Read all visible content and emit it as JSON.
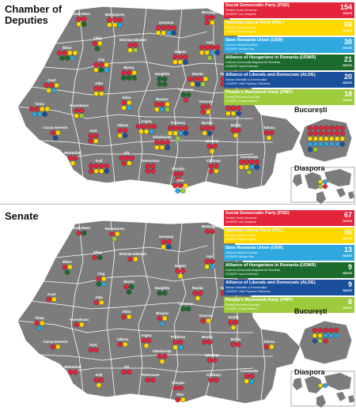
{
  "colors": {
    "PSD": "#e3243a",
    "PNL": "#ffd900",
    "USR": "#2ea8df",
    "UDMR": "#1c6b2c",
    "ALDE": "#1a4f9c",
    "PMP": "#9ecb3b",
    "map_fill": "#7c7c7c",
    "border": "#ffffff"
  },
  "chamber": {
    "title": "Chamber of\nDeputies",
    "legend": [
      {
        "key": "PSD",
        "name": "Social Democratic Party (PSD)",
        "native": "Partidul Social Democrat",
        "leader": "LEADER: Liviu Dragnea",
        "seats": "154",
        "seat_label": "SEATS"
      },
      {
        "key": "PNL",
        "name": "National Liberal Party (PNL)",
        "native": "Partidul Național Liberal",
        "leader": "LEADER: Alina Gorghiu",
        "seats": "69",
        "seat_label": "SEATS"
      },
      {
        "key": "USR",
        "name": "Save Romania Union (USR)",
        "native": "Uniunea Salvați România",
        "leader": "LEADER: Nicușor Dan",
        "seats": "30",
        "seat_label": "SEATS"
      },
      {
        "key": "UDMR",
        "name": "Alliance of Hungarians in Romania (UDMR)",
        "native": "Uniunea Democrată Maghiară din România",
        "leader": "LEADER: Hunor Kelemen",
        "seats": "21",
        "seat_label": "SEATS"
      },
      {
        "key": "ALDE",
        "name": "Alliance of Liberals and Democrats (ALDE)",
        "native": "Alianța Liberalilor și Democraților",
        "leader": "LEADER: Călin Popescu-Tăriceanu",
        "seats": "20",
        "seat_label": "SEATS"
      },
      {
        "key": "PMP",
        "name": "People's Movement Party (PMP)",
        "native": "Partidul Mișcarea Populară",
        "leader": "LEADER: Traian Băsescu",
        "seats": "18",
        "seat_label": "SEATS"
      }
    ],
    "inset_bucharest": "București",
    "inset_diaspora": "Diaspora"
  },
  "senate": {
    "title": "Senate",
    "legend": [
      {
        "key": "PSD",
        "name": "Social Democratic Party (PSD)",
        "native": "Partidul Social Democrat",
        "leader": "LEADER: Liviu Dragnea",
        "seats": "67",
        "seat_label": "SEATS"
      },
      {
        "key": "PNL",
        "name": "National Liberal Party (PNL)",
        "native": "Partidul Național Liberal",
        "leader": "LEADER: Alina Gorghiu",
        "seats": "30",
        "seat_label": "SEATS"
      },
      {
        "key": "USR",
        "name": "Save Romania Union (USR)",
        "native": "Uniunea Salvați România",
        "leader": "LEADER: Nicușor Dan",
        "seats": "13",
        "seat_label": "SEATS"
      },
      {
        "key": "UDMR",
        "name": "Alliance of Hungarians in Romania (UDMR)",
        "native": "Uniunea Democrată Maghiară din România",
        "leader": "LEADER: Hunor Kelemen",
        "seats": "9",
        "seat_label": "SEATS"
      },
      {
        "key": "ALDE",
        "name": "Alliance of Liberals and Democrats (ALDE)",
        "native": "Alianța Liberalilor și Democraților",
        "leader": "LEADER: Călin Popescu-Tăriceanu",
        "seats": "9",
        "seat_label": "SEATS"
      },
      {
        "key": "PMP",
        "name": "People's Movement Party (PMP)",
        "native": "Partidul Mișcarea Populară",
        "leader": "LEADER: Traian Băsescu",
        "seats": "8",
        "seat_label": "SEATS"
      }
    ],
    "inset_bucharest": "București",
    "inset_diaspora": "Diaspora"
  },
  "counties": [
    {
      "name": "Satu Mare",
      "cd": [
        "PSD",
        "PSD",
        "PNL",
        "UDMR"
      ],
      "s": [
        "PSD",
        "UDMR"
      ]
    },
    {
      "name": "Maramureș",
      "cd": [
        "PSD",
        "PSD",
        "PSD",
        "PNL",
        "PNL",
        "USR"
      ],
      "s": [
        "PSD",
        "PNL",
        "PMP"
      ]
    },
    {
      "name": "Suceava",
      "cd": [
        "PSD",
        "PSD",
        "PSD",
        "PSD",
        "PNL",
        "PNL",
        "USR",
        "ALDE"
      ],
      "s": [
        "PSD",
        "PSD",
        "PNL",
        "ALDE"
      ]
    },
    {
      "name": "Botoșani",
      "cd": [
        "PSD",
        "PSD",
        "PSD",
        "PNL"
      ],
      "s": [
        "PSD",
        "PSD"
      ]
    },
    {
      "name": "Bihor",
      "cd": [
        "PSD",
        "PSD",
        "PNL",
        "PNL",
        "UDMR",
        "UDMR",
        "USR"
      ],
      "s": [
        "PSD",
        "PNL",
        "UDMR"
      ]
    },
    {
      "name": "Sălaj",
      "cd": [
        "PSD",
        "PNL",
        "UDMR"
      ],
      "s": [
        "PSD",
        "UDMR"
      ]
    },
    {
      "name": "Bistrița-Năsăud",
      "cd": [
        "PSD",
        "PSD",
        "PNL",
        "PMP"
      ],
      "s": [
        "PSD",
        "PNL"
      ]
    },
    {
      "name": "Neamț",
      "cd": [
        "PSD",
        "PSD",
        "PSD",
        "PNL",
        "PNL",
        "ALDE"
      ],
      "s": [
        "PSD",
        "PSD",
        "PNL"
      ]
    },
    {
      "name": "Iași",
      "cd": [
        "PSD",
        "PSD",
        "PSD",
        "PSD",
        "PNL",
        "PNL",
        "USR",
        "ALDE",
        "PMP"
      ],
      "s": [
        "PSD",
        "PSD",
        "PNL",
        "USR"
      ]
    },
    {
      "name": "Cluj",
      "cd": [
        "PSD",
        "PSD",
        "PNL",
        "PNL",
        "UDMR",
        "USR"
      ],
      "s": [
        "PSD",
        "PNL",
        "UDMR",
        "USR"
      ]
    },
    {
      "name": "Mureș",
      "cd": [
        "PSD",
        "PSD",
        "PNL",
        "UDMR",
        "UDMR",
        "UDMR"
      ],
      "s": [
        "PSD",
        "UDMR",
        "UDMR"
      ]
    },
    {
      "name": "Harghita",
      "cd": [
        "UDMR",
        "UDMR",
        "UDMR",
        "UDMR"
      ],
      "s": [
        "UDMR",
        "UDMR"
      ]
    },
    {
      "name": "Bacău",
      "cd": [
        "PSD",
        "PSD",
        "PSD",
        "PNL",
        "PNL",
        "ALDE",
        "PMP"
      ],
      "s": [
        "PSD",
        "PSD",
        "PNL"
      ]
    },
    {
      "name": "Vaslui",
      "cd": [
        "PSD",
        "PSD",
        "PSD",
        "PNL"
      ],
      "s": [
        "PSD",
        "PSD"
      ]
    },
    {
      "name": "Arad",
      "cd": [
        "PSD",
        "PSD",
        "PNL",
        "PNL",
        "USR"
      ],
      "s": [
        "PSD",
        "PNL"
      ]
    },
    {
      "name": "Alba",
      "cd": [
        "PSD",
        "PSD",
        "PNL",
        "PNL"
      ],
      "s": [
        "PSD",
        "PNL"
      ]
    },
    {
      "name": "Sibiu",
      "cd": [
        "PSD",
        "PNL",
        "PNL",
        "USR"
      ],
      "s": [
        "PSD",
        "PNL"
      ]
    },
    {
      "name": "Brașov",
      "cd": [
        "PSD",
        "PSD",
        "PNL",
        "PNL",
        "USR",
        "PMP"
      ],
      "s": [
        "PSD",
        "PNL",
        "USR"
      ]
    },
    {
      "name": "Covasna",
      "cd": [
        "UDMR",
        "UDMR",
        "PSD"
      ],
      "s": [
        "UDMR",
        "UDMR"
      ]
    },
    {
      "name": "Timiș",
      "cd": [
        "PSD",
        "PSD",
        "PNL",
        "PNL",
        "USR",
        "USR",
        "ALDE"
      ],
      "s": [
        "PSD",
        "PNL",
        "USR"
      ]
    },
    {
      "name": "Hunedoara",
      "cd": [
        "PSD",
        "PSD",
        "PNL",
        "PMP"
      ],
      "s": [
        "PSD",
        "PNL"
      ]
    },
    {
      "name": "Vrancea",
      "cd": [
        "PSD",
        "PSD",
        "PSD",
        "PNL"
      ],
      "s": [
        "PSD",
        "PNL"
      ]
    },
    {
      "name": "Galați",
      "cd": [
        "PSD",
        "PSD",
        "PSD",
        "PNL",
        "PNL",
        "ALDE"
      ],
      "s": [
        "PSD",
        "PSD",
        "PNL"
      ]
    },
    {
      "name": "Caraș-Severin",
      "cd": [
        "PSD",
        "PNL",
        "ALDE"
      ],
      "s": [
        "PSD",
        "PNL"
      ]
    },
    {
      "name": "Gorj",
      "cd": [
        "PSD",
        "PSD",
        "PSD",
        "PNL"
      ],
      "s": [
        "PSD",
        "PSD"
      ]
    },
    {
      "name": "Vâlcea",
      "cd": [
        "PSD",
        "PSD",
        "PNL",
        "ALDE"
      ],
      "s": [
        "PSD",
        "PNL"
      ]
    },
    {
      "name": "Argeș",
      "cd": [
        "PSD",
        "PSD",
        "PSD",
        "PSD",
        "PNL",
        "PNL",
        "USR"
      ],
      "s": [
        "PSD",
        "PSD",
        "PNL"
      ]
    },
    {
      "name": "Prahova",
      "cd": [
        "PSD",
        "PSD",
        "PSD",
        "PSD",
        "PNL",
        "PNL",
        "USR",
        "ALDE",
        "PMP"
      ],
      "s": [
        "PSD",
        "PSD",
        "PNL",
        "USR"
      ]
    },
    {
      "name": "Buzău",
      "cd": [
        "PSD",
        "PSD",
        "PSD",
        "PNL",
        "ALDE"
      ],
      "s": [
        "PSD",
        "PSD"
      ]
    },
    {
      "name": "Brăila",
      "cd": [
        "PSD",
        "PSD",
        "PNL"
      ],
      "s": [
        "PSD",
        "PSD"
      ]
    },
    {
      "name": "Tulcea",
      "cd": [
        "PSD",
        "PSD",
        "PNL"
      ],
      "s": [
        "PSD",
        "PNL"
      ]
    },
    {
      "name": "Mehedinți",
      "cd": [
        "PSD",
        "PSD",
        "PNL"
      ],
      "s": [
        "PSD",
        "PSD"
      ]
    },
    {
      "name": "Dolj",
      "cd": [
        "PSD",
        "PSD",
        "PSD",
        "PSD",
        "PSD",
        "PNL",
        "PNL",
        "ALDE"
      ],
      "s": [
        "PSD",
        "PSD",
        "PNL"
      ]
    },
    {
      "name": "Olt",
      "cd": [
        "PSD",
        "PSD",
        "PSD",
        "PSD",
        "PNL"
      ],
      "s": [
        "PSD",
        "PSD"
      ]
    },
    {
      "name": "Teleorman",
      "cd": [
        "PSD",
        "PSD",
        "PSD",
        "PSD"
      ],
      "s": [
        "PSD",
        "PSD"
      ]
    },
    {
      "name": "Dâmbovița",
      "cd": [
        "PSD",
        "PSD",
        "PSD",
        "PNL",
        "PNL",
        "ALDE"
      ],
      "s": [
        "PSD",
        "PSD",
        "PNL"
      ]
    },
    {
      "name": "Ialomița",
      "cd": [
        "PSD",
        "PSD",
        "PNL"
      ],
      "s": [
        "PSD",
        "PSD"
      ]
    },
    {
      "name": "Călărași",
      "cd": [
        "PSD",
        "PSD",
        "PSD",
        "PNL"
      ],
      "s": [
        "PSD",
        "PSD"
      ]
    },
    {
      "name": "Giurgiu",
      "cd": [
        "PSD",
        "PSD",
        "PSD"
      ],
      "s": [
        "PSD",
        "PSD"
      ]
    },
    {
      "name": "Constanța",
      "cd": [
        "PSD",
        "PSD",
        "PSD",
        "PSD",
        "PNL",
        "PNL",
        "USR",
        "ALDE",
        "PMP"
      ],
      "s": [
        "PSD",
        "PSD",
        "PNL",
        "USR"
      ]
    },
    {
      "name": "Ilfov",
      "cd": [
        "PSD",
        "PSD",
        "PNL",
        "USR",
        "PMP"
      ],
      "s": [
        "PSD",
        "PNL"
      ]
    }
  ],
  "bucharest": {
    "cd": [
      "PSD",
      "PSD",
      "PSD",
      "PSD",
      "PSD",
      "PSD",
      "PSD",
      "PSD",
      "PSD",
      "PSD",
      "PSD",
      "PSD",
      "PSD",
      "PSD",
      "PNL",
      "PNL",
      "PNL",
      "PNL",
      "PNL",
      "PNL",
      "PNL",
      "USR",
      "USR",
      "USR",
      "USR",
      "USR",
      "USR",
      "ALDE",
      "ALDE",
      "PMP"
    ],
    "s": [
      "PSD",
      "PSD",
      "PSD",
      "PSD",
      "PSD",
      "PNL",
      "PNL",
      "USR",
      "USR",
      "USR",
      "ALDE",
      "PMP",
      "PSD"
    ]
  },
  "diaspora": {
    "cd": [
      "PNL",
      "USR",
      "PMP",
      "PSD"
    ],
    "s": [
      "PNL",
      "USR"
    ]
  }
}
